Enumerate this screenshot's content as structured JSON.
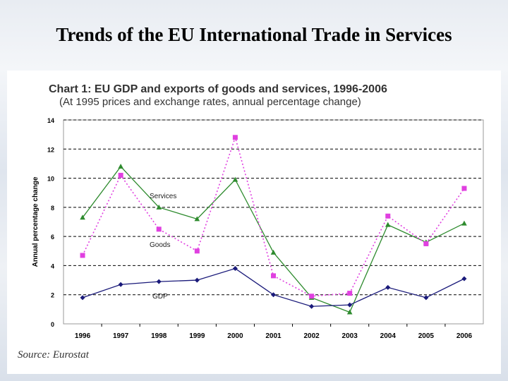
{
  "slide": {
    "title": "Trends of the EU International Trade in Services",
    "source": "Source: Eurostat"
  },
  "colors": {
    "services": "#2e8b2e",
    "goods": "#e040e0",
    "gdp": "#1a1a7a",
    "chart_title": "#333333",
    "grid": "#000000"
  },
  "chart_data": {
    "type": "line",
    "title": "Chart 1: EU GDP and exports of goods and services, 1996-2006",
    "subtitle": "(At 1995 prices and exchange rates, annual percentage change)",
    "xlabel": "",
    "ylabel": "Annual percentage change",
    "ylim": [
      0,
      14
    ],
    "yticks": [
      "0",
      "2",
      "4",
      "6",
      "8",
      "10",
      "12",
      "14"
    ],
    "categories": [
      "1996",
      "1997",
      "1998",
      "1999",
      "2000",
      "2001",
      "2002",
      "2003",
      "2004",
      "2005",
      "2006"
    ],
    "grid": true,
    "series": [
      {
        "name": "Services",
        "marker": "triangle",
        "line": "solid",
        "color_key": "services",
        "values": [
          7.3,
          10.8,
          8.0,
          7.2,
          9.9,
          4.9,
          1.8,
          0.8,
          6.8,
          5.6,
          6.9
        ]
      },
      {
        "name": "Goods",
        "marker": "square",
        "line": "dotted",
        "color_key": "goods",
        "values": [
          4.7,
          10.2,
          6.5,
          5.0,
          12.8,
          3.3,
          1.9,
          2.1,
          7.4,
          5.5,
          9.3
        ]
      },
      {
        "name": "GDP",
        "marker": "diamond",
        "line": "solid",
        "color_key": "gdp",
        "values": [
          1.8,
          2.7,
          2.9,
          3.0,
          3.8,
          2.0,
          1.2,
          1.3,
          2.5,
          1.8,
          3.1
        ]
      }
    ]
  }
}
